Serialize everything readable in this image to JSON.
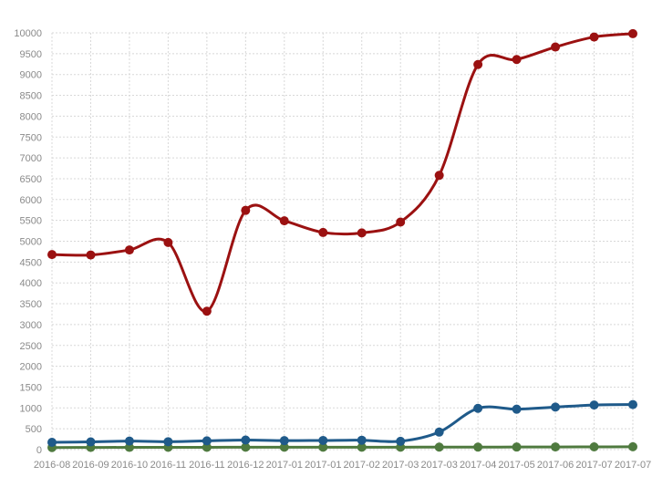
{
  "chart_data": {
    "type": "line",
    "title": "",
    "xlabel": "",
    "ylabel": "",
    "ylim": [
      0,
      10000
    ],
    "yticks": [
      0,
      500,
      1000,
      1500,
      2000,
      2500,
      3000,
      3500,
      4000,
      4500,
      5000,
      5500,
      6000,
      6500,
      7000,
      7500,
      8000,
      8500,
      9000,
      9500,
      10000
    ],
    "grid": true,
    "smooth": true,
    "categories": [
      "2016-08",
      "2016-09",
      "2016-10",
      "2016-11",
      "2016-11",
      "2016-12",
      "2017-01",
      "2017-01",
      "2017-02",
      "2017-03",
      "2017-03",
      "2017-04",
      "2017-05",
      "2017-06",
      "2017-07",
      "2017-07"
    ],
    "series": [
      {
        "color": "#9b1111",
        "values": [
          4680,
          4670,
          4790,
          4970,
          3320,
          5740,
          5490,
          5210,
          5200,
          5460,
          6580,
          9240,
          9360,
          9660,
          9900,
          9980
        ]
      },
      {
        "color": "#1f5a8a",
        "values": [
          175,
          185,
          205,
          190,
          210,
          230,
          215,
          220,
          225,
          200,
          420,
          990,
          970,
          1020,
          1070,
          1080
        ]
      },
      {
        "color": "#4f7a3f",
        "values": [
          50,
          52,
          54,
          55,
          56,
          58,
          58,
          58,
          58,
          58,
          60,
          60,
          62,
          64,
          66,
          68
        ]
      }
    ]
  }
}
